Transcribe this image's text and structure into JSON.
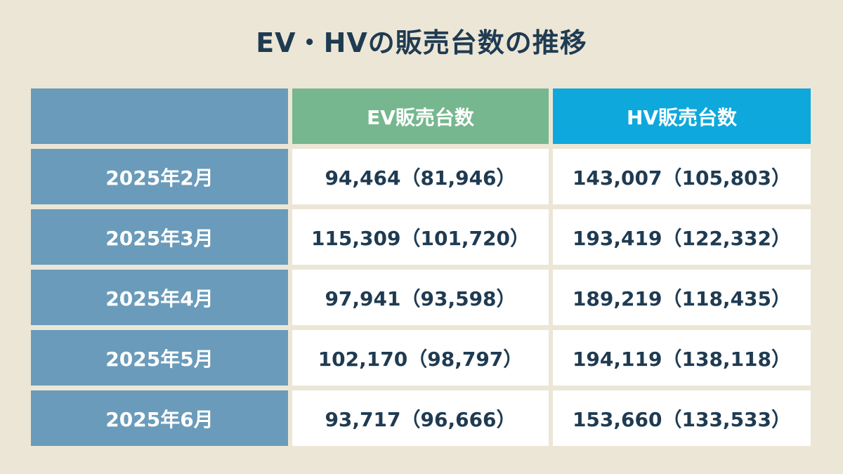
{
  "title": "EV・HVの販売台数の推移",
  "chart_data": {
    "type": "table",
    "columns": [
      "",
      "EV販売台数",
      "HV販売台数"
    ],
    "rows": [
      {
        "label": "2025年2月",
        "ev": "94,464（81,946）",
        "hv": "143,007（105,803）"
      },
      {
        "label": "2025年3月",
        "ev": "115,309（101,720）",
        "hv": "193,419（122,332）"
      },
      {
        "label": "2025年4月",
        "ev": "97,941（93,598）",
        "hv": "189,219（118,435）"
      },
      {
        "label": "2025年5月",
        "ev": "102,170（98,797）",
        "hv": "194,119（138,118）"
      },
      {
        "label": "2025年6月",
        "ev": "93,717（96,666）",
        "hv": "153,660（133,533）"
      }
    ]
  },
  "colors": {
    "background": "#ece6d6",
    "title_text": "#1f3b52",
    "month_cell": "#6a9bba",
    "ev_header": "#76b78f",
    "hv_header": "#0ea8dc",
    "value_cell": "#ffffff",
    "value_text": "#1f3b52"
  }
}
